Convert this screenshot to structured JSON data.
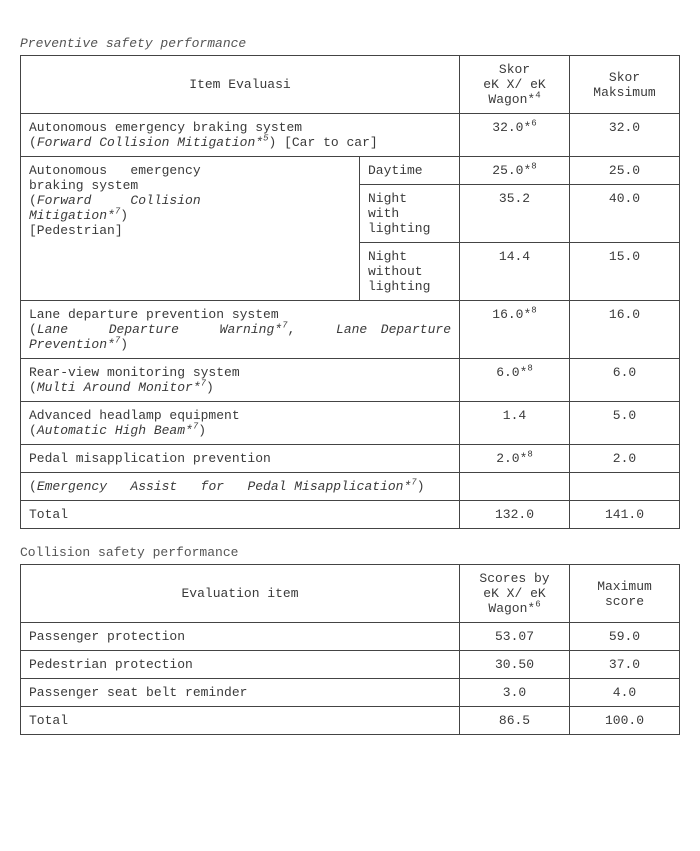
{
  "table1": {
    "title": "Preventive safety performance",
    "head": {
      "item": "Item Evaluasi",
      "score": "Skor\neK X/ eK\nWagon*",
      "score_sup": "4",
      "max": "Skor\nMaksimum"
    },
    "r1": {
      "label_a": "Autonomous emergency braking system",
      "label_b": "(",
      "label_c": "Forward Collision Mitigation*",
      "label_c_sup": "5",
      "label_d": ") [Car to car]",
      "score": "32.0*",
      "score_sup": "6",
      "max": "32.0"
    },
    "r2": {
      "label_a": "Autonomous   emergency",
      "label_b": "braking system",
      "label_c": "(",
      "label_d": "Forward     Collision",
      "label_e": "Mitigation*",
      "label_e_sup": "7",
      "label_f": ")",
      "label_g": "[Pedestrian]",
      "cond1": "Daytime",
      "cond1_score": "25.0*",
      "cond1_sup": "8",
      "cond1_max": "25.0",
      "cond2": "Night\nwith\nlighting",
      "cond2_score": "35.2",
      "cond2_max": "40.0",
      "cond3": "Night\nwithout\nlighting",
      "cond3_score": "14.4",
      "cond3_max": "15.0"
    },
    "r3": {
      "label_a": "Lane departure prevention system",
      "label_b": "(",
      "label_c": "Lane   Departure   Warning*",
      "label_c_sup": "7",
      "label_d": ",   ",
      "label_e": "Lane Departure Prevention*",
      "label_e_sup": "7",
      "label_f": ")",
      "score": "16.0*",
      "score_sup": "8",
      "max": "16.0"
    },
    "r4": {
      "label_a": "Rear-view monitoring system",
      "label_b": "(",
      "label_c": "Multi Around Monitor*",
      "label_c_sup": "7",
      "label_d": ")",
      "score": "6.0*",
      "score_sup": "8",
      "max": "6.0"
    },
    "r5": {
      "label_a": "Advanced headlamp equipment",
      "label_b": "(",
      "label_c": "Automatic High Beam*",
      "label_c_sup": "7",
      "label_d": ")",
      "score": "1.4",
      "max": "5.0"
    },
    "r6": {
      "label": "Pedal misapplication prevention",
      "score": "2.0*",
      "score_sup": "8",
      "max": "2.0"
    },
    "r7": {
      "label_a": "(",
      "label_b": "Emergency   Assist   for   Pedal Misapplication*",
      "label_b_sup": "7",
      "label_c": ")"
    },
    "total": {
      "label": "Total",
      "score": "132.0",
      "max": "141.0"
    }
  },
  "table2": {
    "title": "Collision safety performance",
    "head": {
      "item": "Evaluation item",
      "score": "Scores by\neK X/ eK\nWagon*",
      "score_sup": "6",
      "max": "Maximum\nscore"
    },
    "rows": [
      {
        "label": "Passenger protection",
        "score": "53.07",
        "max": "59.0"
      },
      {
        "label": "Pedestrian protection",
        "score": "30.50",
        "max": "37.0"
      },
      {
        "label": "Passenger seat belt reminder",
        "score": "3.0",
        "max": "4.0"
      },
      {
        "label": "Total",
        "score": "86.5",
        "max": "100.0"
      }
    ]
  }
}
